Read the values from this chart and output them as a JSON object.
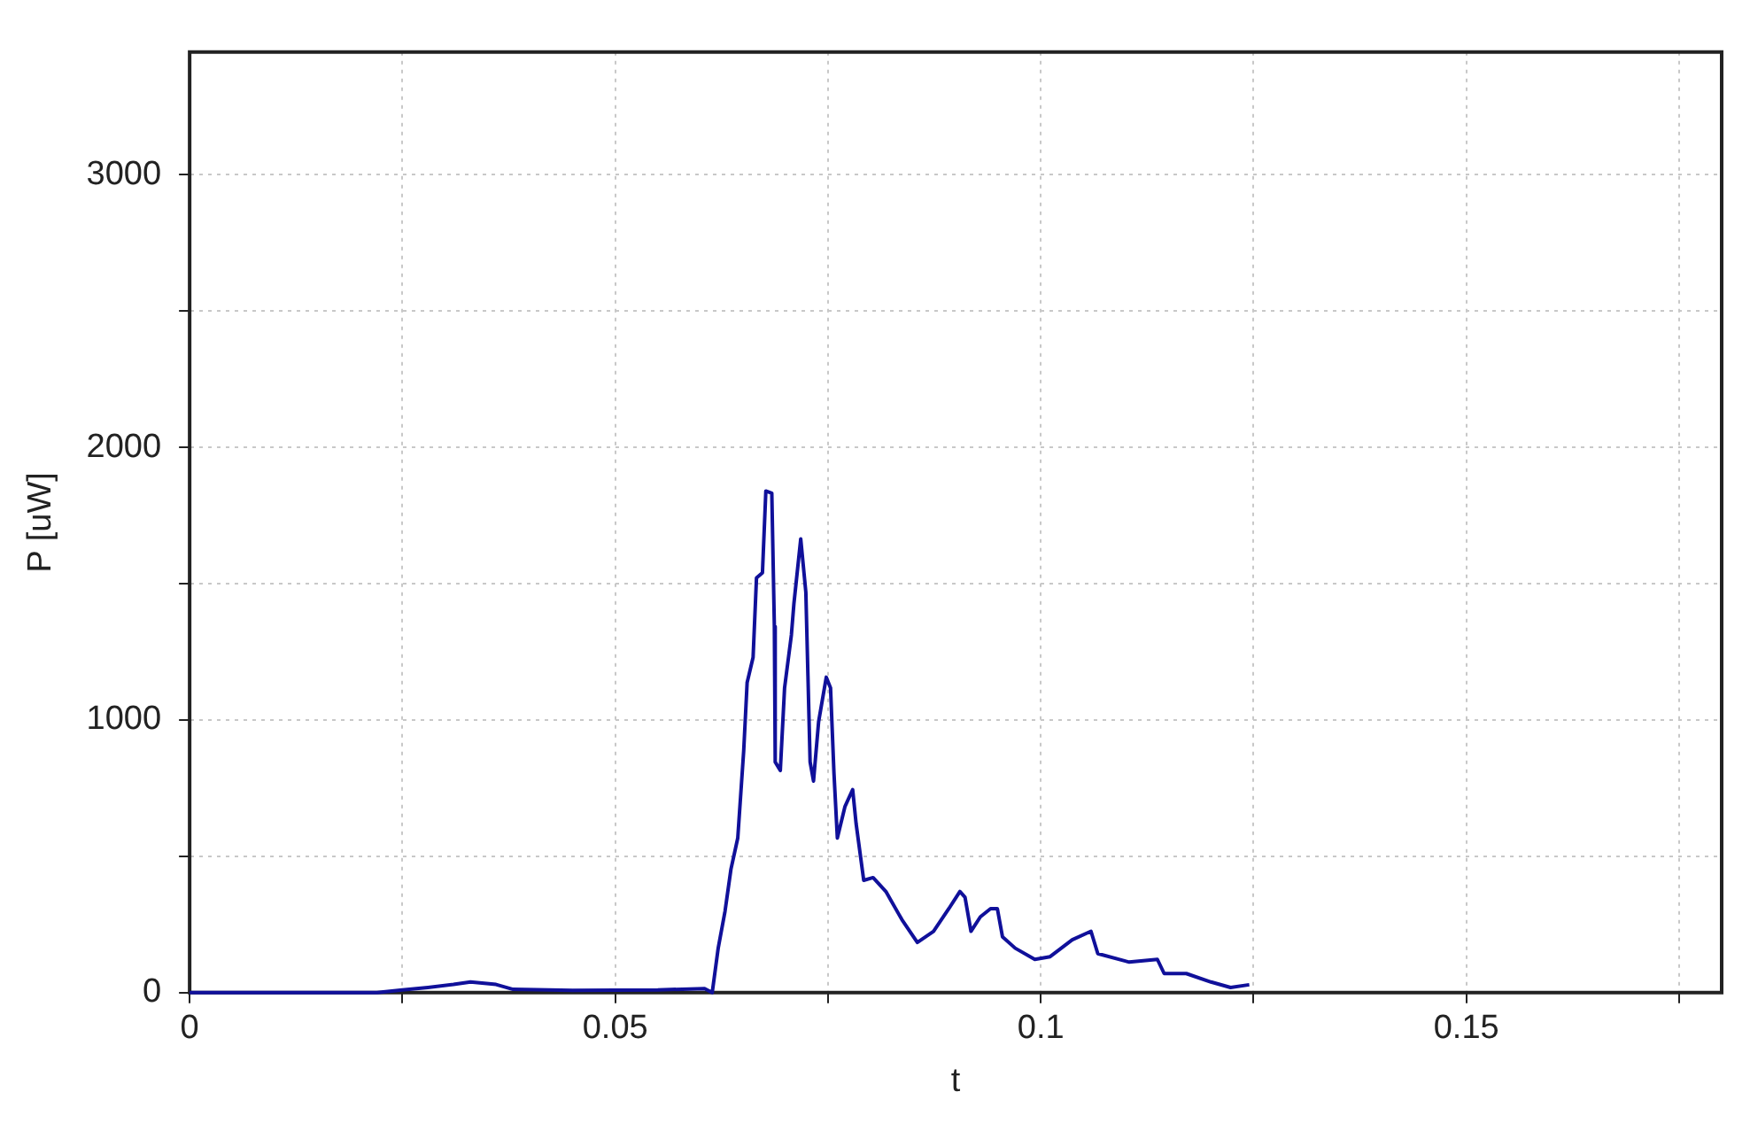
{
  "chart_data": {
    "type": "line",
    "xlabel": "t",
    "ylabel": "P [uW]",
    "x": [
      0,
      0.022,
      0.025,
      0.028,
      0.031,
      0.033,
      0.036,
      0.038,
      0.045,
      0.055,
      0.0605,
      0.0614,
      0.0621,
      0.0629,
      0.0636,
      0.0644,
      0.0651,
      0.0655,
      0.0662,
      0.0666,
      0.0673,
      0.0677,
      0.0684,
      0.0687,
      0.0688,
      0.0694,
      0.0699,
      0.0707,
      0.071,
      0.0718,
      0.0724,
      0.0729,
      0.0733,
      0.0739,
      0.0748,
      0.0753,
      0.0757,
      0.0761,
      0.077,
      0.0779,
      0.0783,
      0.0792,
      0.0803,
      0.0818,
      0.0837,
      0.0855,
      0.0874,
      0.0892,
      0.0905,
      0.0911,
      0.0918,
      0.0929,
      0.0941,
      0.0949,
      0.0955,
      0.097,
      0.0993,
      0.1011,
      0.1037,
      0.1059,
      0.1067,
      0.1104,
      0.1137,
      0.1145,
      0.1171,
      0.12,
      0.1223,
      0.1245
    ],
    "series": [
      {
        "color": "#10109a",
        "values": [
          0,
          0,
          10,
          19,
          30,
          39,
          30,
          12,
          8,
          10,
          15,
          0,
          163,
          298,
          453,
          567,
          888,
          1137,
          1230,
          1521,
          1540,
          1840,
          1832,
          1343,
          846,
          815,
          1118,
          1312,
          1428,
          1664,
          1468,
          846,
          776,
          994,
          1157,
          1118,
          807,
          567,
          683,
          745,
          621,
          412,
          422,
          371,
          267,
          184,
          225,
          308,
          371,
          350,
          225,
          278,
          308,
          308,
          205,
          163,
          122,
          132,
          194,
          225,
          143,
          112,
          122,
          70,
          70,
          39,
          19,
          29
        ]
      }
    ],
    "xlim": [
      0,
      0.18
    ],
    "ylim": [
      0,
      3450
    ],
    "xticks": [
      0,
      {
        "value": 0.025,
        "label": null
      },
      0.05,
      {
        "value": 0.075,
        "label": null
      },
      0.1,
      {
        "value": 0.125,
        "label": null
      },
      0.15,
      {
        "value": 0.175,
        "label": null
      }
    ],
    "yticks": [
      0,
      {
        "value": 500,
        "label": null
      },
      1000,
      {
        "value": 1500,
        "label": null
      },
      2000,
      {
        "value": 2500,
        "label": null
      },
      3000
    ],
    "grid": true,
    "legend": false,
    "marker": "none",
    "line_style": "solid"
  }
}
